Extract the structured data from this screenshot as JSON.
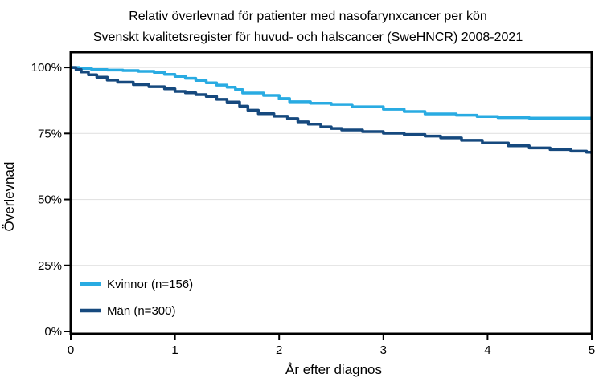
{
  "chart_data": {
    "type": "line",
    "subtype": "kaplan-meier-step",
    "title": "Relativ överlevnad för patienter med nasofarynxcancer per kön",
    "subtitle": "Svenskt kvalitetsregister för huvud- och halscancer (SweHNCR) 2008-2021",
    "xlabel": "År efter diagnos",
    "ylabel": "Överlevnad",
    "xlim": [
      0,
      5
    ],
    "ylim": [
      0,
      100
    ],
    "x_ticks": [
      0,
      1,
      2,
      3,
      4,
      5
    ],
    "x_tick_labels": [
      "0",
      "1",
      "2",
      "3",
      "4",
      "5"
    ],
    "y_ticks": [
      0,
      25,
      50,
      75,
      100
    ],
    "y_tick_labels": [
      "0%",
      "25%",
      "50%",
      "75%",
      "100%"
    ],
    "grid": "horizontal gridlines at 25/50/75/100 percent",
    "gridline_color": "#e3e3e3",
    "axis_color": "#000000",
    "legend_position": "inside bottom-left",
    "series": [
      {
        "name": "Kvinnor (n=156)",
        "color": "#29abe2",
        "points": [
          [
            0,
            100
          ],
          [
            0.08,
            99.6
          ],
          [
            0.2,
            99.2
          ],
          [
            0.35,
            99.0
          ],
          [
            0.5,
            98.8
          ],
          [
            0.65,
            98.5
          ],
          [
            0.8,
            98.1
          ],
          [
            0.9,
            97.4
          ],
          [
            1.0,
            96.6
          ],
          [
            1.1,
            95.9
          ],
          [
            1.2,
            95.1
          ],
          [
            1.3,
            94.2
          ],
          [
            1.4,
            93.3
          ],
          [
            1.5,
            92.5
          ],
          [
            1.58,
            91.6
          ],
          [
            1.65,
            90.3
          ],
          [
            1.85,
            89.4
          ],
          [
            2.0,
            88.2
          ],
          [
            2.1,
            87.0
          ],
          [
            2.3,
            86.4
          ],
          [
            2.5,
            86.0
          ],
          [
            2.7,
            85.1
          ],
          [
            3.0,
            84.2
          ],
          [
            3.2,
            83.3
          ],
          [
            3.4,
            82.4
          ],
          [
            3.7,
            81.9
          ],
          [
            3.9,
            81.4
          ],
          [
            4.1,
            81.0
          ],
          [
            4.4,
            80.8
          ],
          [
            5.0,
            80.8
          ]
        ]
      },
      {
        "name": "Män (n=300)",
        "color": "#16497e",
        "points": [
          [
            0,
            100
          ],
          [
            0.05,
            99.2
          ],
          [
            0.1,
            98.3
          ],
          [
            0.17,
            97.2
          ],
          [
            0.25,
            96.3
          ],
          [
            0.35,
            95.2
          ],
          [
            0.45,
            94.4
          ],
          [
            0.6,
            93.5
          ],
          [
            0.75,
            92.7
          ],
          [
            0.9,
            91.9
          ],
          [
            1.0,
            90.9
          ],
          [
            1.1,
            90.4
          ],
          [
            1.2,
            89.7
          ],
          [
            1.3,
            89.0
          ],
          [
            1.4,
            87.9
          ],
          [
            1.5,
            86.9
          ],
          [
            1.62,
            85.3
          ],
          [
            1.7,
            83.8
          ],
          [
            1.8,
            82.5
          ],
          [
            1.95,
            81.5
          ],
          [
            2.08,
            80.6
          ],
          [
            2.18,
            79.4
          ],
          [
            2.28,
            78.5
          ],
          [
            2.4,
            77.5
          ],
          [
            2.5,
            76.9
          ],
          [
            2.6,
            76.3
          ],
          [
            2.8,
            75.7
          ],
          [
            3.0,
            75.1
          ],
          [
            3.2,
            74.6
          ],
          [
            3.4,
            74.0
          ],
          [
            3.55,
            73.3
          ],
          [
            3.75,
            72.4
          ],
          [
            3.95,
            71.4
          ],
          [
            4.2,
            70.3
          ],
          [
            4.4,
            69.5
          ],
          [
            4.6,
            68.9
          ],
          [
            4.8,
            68.3
          ],
          [
            4.95,
            67.9
          ],
          [
            5.0,
            67.3
          ]
        ]
      }
    ]
  }
}
